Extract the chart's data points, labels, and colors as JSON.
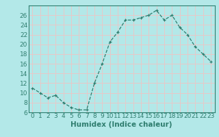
{
  "x": [
    0,
    1,
    2,
    3,
    4,
    5,
    6,
    7,
    8,
    9,
    10,
    11,
    12,
    13,
    14,
    15,
    16,
    17,
    18,
    19,
    20,
    21,
    22,
    23
  ],
  "y": [
    11,
    10,
    9,
    9.5,
    8,
    7,
    6.5,
    6.5,
    12,
    16,
    20.5,
    22.5,
    25,
    25,
    25.5,
    26,
    27,
    25,
    26,
    23.5,
    22,
    19.5,
    18,
    16.5
  ],
  "xlabel": "Humidex (Indice chaleur)",
  "ylabel": "",
  "xlim": [
    -0.5,
    23.5
  ],
  "ylim": [
    6,
    28
  ],
  "yticks": [
    6,
    8,
    10,
    12,
    14,
    16,
    18,
    20,
    22,
    24,
    26
  ],
  "xticks": [
    0,
    1,
    2,
    3,
    4,
    5,
    6,
    7,
    8,
    9,
    10,
    11,
    12,
    13,
    14,
    15,
    16,
    17,
    18,
    19,
    20,
    21,
    22,
    23
  ],
  "line_color": "#2e7d6e",
  "marker": "+",
  "bg_color": "#b3e8e8",
  "grid_color": "#e8c8c8",
  "plot_bg": "#b3e8e8",
  "xlabel_fontsize": 7.5,
  "tick_fontsize": 6.5
}
